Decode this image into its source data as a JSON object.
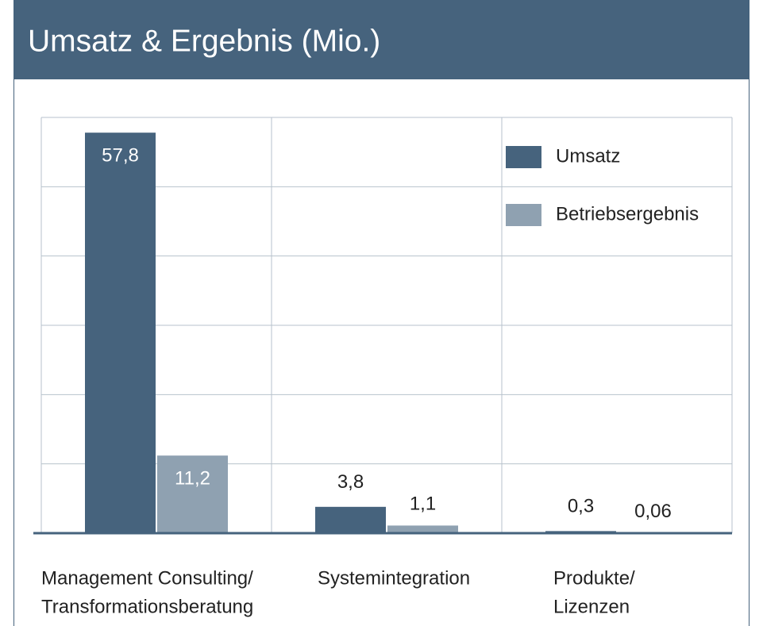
{
  "chart_data": {
    "type": "bar",
    "title": "Umsatz & Ergebnis (Mio.)",
    "categories": [
      [
        "Management Consulting/",
        "Transformationsberatung"
      ],
      [
        "Systemintegration"
      ],
      [
        "Produkte/",
        "Lizenzen"
      ]
    ],
    "series": [
      {
        "name": "Umsatz",
        "color": "#46637d",
        "values": [
          57.8,
          3.8,
          0.3
        ],
        "value_labels": [
          "57,8",
          "3,8",
          "0,3"
        ]
      },
      {
        "name": "Betriebsergebnis",
        "color": "#8fa1b1",
        "values": [
          11.2,
          1.1,
          0.06
        ],
        "value_labels": [
          "11,2",
          "1,1",
          "0,06"
        ]
      }
    ],
    "ylim": [
      0,
      60
    ],
    "yticks": [
      0,
      10,
      20,
      30,
      40,
      50,
      60
    ],
    "grid": true,
    "legend": "top-right"
  }
}
